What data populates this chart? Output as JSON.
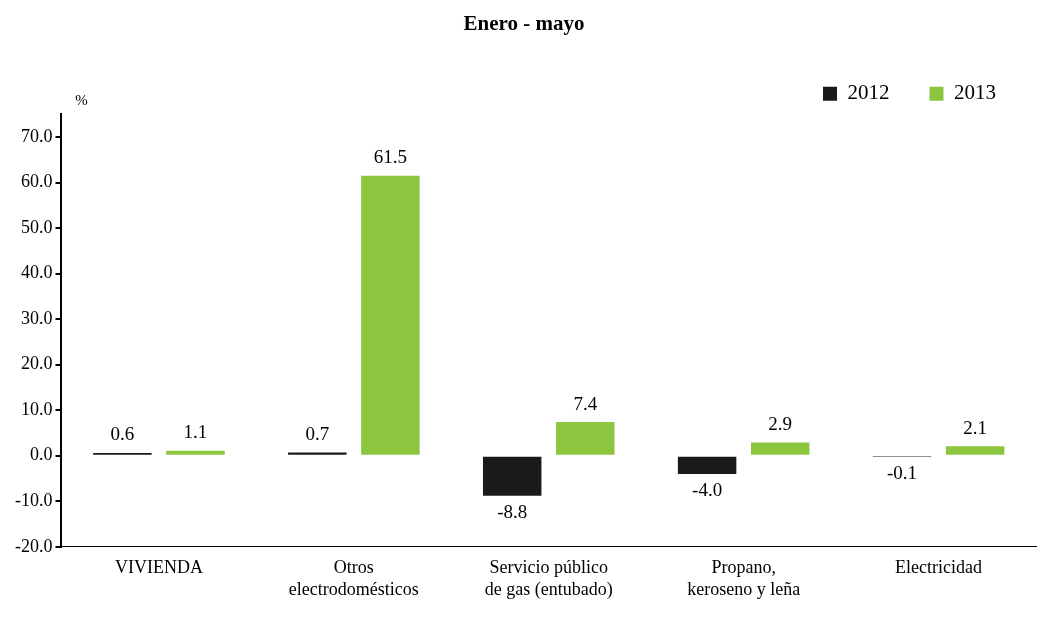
{
  "chart_data": {
    "type": "bar",
    "title": "Enero - mayo",
    "ylabel": "%",
    "categories": [
      "VIVIENDA",
      "Otros\nelectrodomésticos",
      "Servicio público\nde gas (entubado)",
      "Propano,\nkeroseno y leña",
      "Electricidad"
    ],
    "series": [
      {
        "name": "2012",
        "color": "#1a1a1a",
        "values": [
          0.6,
          0.7,
          -8.8,
          -4.0,
          -0.1
        ],
        "value_labels": [
          "0.6",
          "0.7",
          "-8.8",
          "-4.0",
          "-0.1"
        ]
      },
      {
        "name": "2013",
        "color": "#8cc63f",
        "values": [
          1.1,
          61.5,
          7.4,
          2.9,
          2.1
        ],
        "value_labels": [
          "1.1",
          "61.5",
          "7.4",
          "2.9",
          "2.1"
        ]
      }
    ],
    "ylim": [
      -20,
      75
    ],
    "yticks": [
      {
        "value": -20,
        "label": "-20.0"
      },
      {
        "value": -10,
        "label": "-10.0"
      },
      {
        "value": 0,
        "label": "0.0"
      },
      {
        "value": 10,
        "label": "10.0"
      },
      {
        "value": 20,
        "label": "20.0"
      },
      {
        "value": 30,
        "label": "30.0"
      },
      {
        "value": 40,
        "label": "40.0"
      },
      {
        "value": 50,
        "label": "50.0"
      },
      {
        "value": 60,
        "label": "60.0"
      },
      {
        "value": 70,
        "label": "70.0"
      }
    ],
    "grid": false,
    "legend": "top right"
  }
}
